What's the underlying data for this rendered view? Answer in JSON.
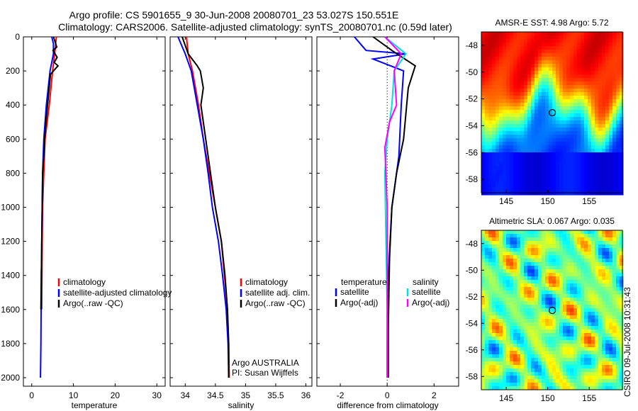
{
  "title_line1": "Argo profile: CS 5901655_9 30-Jun-2008 20080701_23 53.027S 150.551E",
  "title_line2": "Climatology: CARS2006. Satellite-adjusted climatology: synTS_20080701.nc (0.59d later)",
  "stamp": "CSIRO 09-Jul-2008 10:31:43",
  "chart_data": [
    {
      "type": "line",
      "xlabel": "temperature",
      "xlim": [
        -2,
        32
      ],
      "ylim": [
        0,
        2050
      ],
      "y_reversed": true,
      "xticks": [
        0,
        10,
        20,
        30
      ],
      "yticks": [
        0,
        200,
        400,
        600,
        800,
        1000,
        1200,
        1400,
        1600,
        1800,
        2000
      ],
      "legend": [
        "climatology",
        "satellite-adjusted climatology",
        "Argo(..raw -QC)"
      ],
      "series": [
        {
          "name": "climatology",
          "color": "#ff0000",
          "x": [
            5.9,
            5.5,
            5.0,
            4.2,
            3.2,
            2.9,
            2.6,
            2.5,
            2.4
          ],
          "y": [
            0,
            100,
            200,
            400,
            600,
            800,
            1000,
            1200,
            1600
          ]
        },
        {
          "name": "satellite-adjusted climatology",
          "color": "#0000ff",
          "x": [
            4.8,
            5.2,
            5.2,
            4.4,
            3.5,
            2.9,
            2.6,
            2.5,
            2.3,
            2.2,
            2.1
          ],
          "y": [
            0,
            40,
            100,
            200,
            400,
            600,
            800,
            1000,
            1400,
            1800,
            2000
          ]
        },
        {
          "name": "Argo(..raw -QC)",
          "color": "#000000",
          "x": [
            5.2,
            6.0,
            5.1,
            6.1,
            5.4,
            6.3,
            4.5,
            3.8,
            3.4,
            3.1,
            2.9,
            2.6,
            2.5,
            2.4,
            2.3,
            2.2
          ],
          "y": [
            0,
            60,
            80,
            120,
            150,
            170,
            220,
            400,
            500,
            600,
            700,
            800,
            1000,
            1200,
            1400,
            1600
          ]
        }
      ]
    },
    {
      "type": "line",
      "xlabel": "salinity",
      "xlim": [
        33.75,
        36.1
      ],
      "ylim": [
        0,
        2050
      ],
      "y_reversed": true,
      "xticks": [
        34,
        34.5,
        35,
        35.5,
        36
      ],
      "xtick_labels": [
        "34",
        "34.5",
        "35",
        "35.5",
        "36"
      ],
      "yticks": [
        0,
        200,
        400,
        600,
        800,
        1000,
        1200,
        1400,
        1600,
        1800,
        2000
      ],
      "legend": [
        "climatology",
        "satellite adj. clim.",
        "Argo(..raw -QC)"
      ],
      "annotation": [
        "Argo AUSTRALIA",
        "PI: Susan Wijffels"
      ],
      "series": [
        {
          "name": "climatology",
          "color": "#ff0000",
          "x": [
            34.02,
            34.05,
            34.12,
            34.22,
            34.3,
            34.4,
            34.5,
            34.6,
            34.65,
            34.7,
            34.72,
            34.73
          ],
          "y": [
            0,
            100,
            200,
            400,
            600,
            800,
            1000,
            1200,
            1400,
            1600,
            1800,
            2000
          ]
        },
        {
          "name": "satellite adj. clim.",
          "color": "#0000ff",
          "x": [
            33.88,
            34.0,
            34.1,
            34.2,
            34.3,
            34.38,
            34.45,
            34.55,
            34.62,
            34.68,
            34.71,
            34.72
          ],
          "y": [
            0,
            100,
            200,
            400,
            600,
            800,
            1000,
            1200,
            1400,
            1600,
            1800,
            2000
          ]
        },
        {
          "name": "Argo(..raw -QC)",
          "color": "#000000",
          "x": [
            33.95,
            34.05,
            34.2,
            34.25,
            34.3,
            34.26,
            34.3,
            34.42,
            34.5,
            34.6,
            34.66,
            34.7,
            34.72,
            34.72
          ],
          "y": [
            0,
            100,
            170,
            200,
            300,
            400,
            500,
            800,
            1000,
            1200,
            1400,
            1600,
            1800,
            2000
          ]
        }
      ]
    },
    {
      "type": "line",
      "xlabel": "difference from climatology",
      "xlim": [
        -3,
        3.05
      ],
      "ylim": [
        0,
        2050
      ],
      "y_reversed": true,
      "xticks": [
        -2,
        0,
        2
      ],
      "yticks": [
        0,
        200,
        400,
        600,
        800,
        1000,
        1200,
        1400,
        1600,
        1800,
        2000
      ],
      "legend_left_title": "temperature",
      "legend_right_title": "salinity",
      "legend_left": [
        "satellite",
        "Argo(-adj)"
      ],
      "legend_right": [
        "satellite",
        "Argo(-adj)"
      ],
      "series": [
        {
          "name": "temperature satellite",
          "color": "#0000ff",
          "x": [
            -1.4,
            -0.9,
            0.8,
            -0.6,
            0.7,
            0.6,
            0.5,
            0.2,
            0.05,
            0.0,
            0.0
          ],
          "y": [
            0,
            80,
            100,
            130,
            200,
            400,
            700,
            1000,
            1400,
            1800,
            2000
          ]
        },
        {
          "name": "temperature Argo(-adj)",
          "color": "#000000",
          "x": [
            -0.6,
            0.2,
            1.2,
            0.9,
            0.7,
            0.4,
            0.2,
            0.1,
            0.05,
            0.05
          ],
          "y": [
            0,
            80,
            170,
            300,
            600,
            800,
            1000,
            1300,
            1700,
            2000
          ]
        },
        {
          "name": "salinity satellite",
          "color": "#00e0e0",
          "x": [
            -0.1,
            0.8,
            0.3,
            0.2,
            0.0,
            -0.1,
            -0.05,
            0.0,
            0.0
          ],
          "y": [
            0,
            100,
            200,
            400,
            600,
            800,
            1200,
            1600,
            2000
          ]
        },
        {
          "name": "salinity Argo(-adj)",
          "color": "#ff00ff",
          "x": [
            -0.1,
            0.6,
            0.3,
            0.4,
            0.1,
            -0.1,
            0.0,
            0.0,
            0.0
          ],
          "y": [
            0,
            100,
            200,
            400,
            500,
            650,
            1000,
            1400,
            2000
          ]
        }
      ]
    },
    {
      "type": "heatmap",
      "title": "AMSR-E SST: 4.98 Argo: 5.72",
      "xlim": [
        142,
        159
      ],
      "ylim": [
        -59,
        -47
      ],
      "xticks": [
        145,
        150,
        155
      ],
      "yticks": [
        -48,
        -50,
        -52,
        -54,
        -56,
        -58
      ],
      "marker": {
        "lon": 150.551,
        "lat": -53.027
      }
    },
    {
      "type": "heatmap",
      "title": "Altimetric SLA: 0.067 Argo: 0.035",
      "xlim": [
        142,
        159
      ],
      "ylim": [
        -59,
        -47
      ],
      "xticks": [
        145,
        150,
        155
      ],
      "yticks": [
        -48,
        -50,
        -52,
        -54,
        -56,
        -58
      ],
      "marker": {
        "lon": 150.551,
        "lat": -53.027
      }
    }
  ]
}
